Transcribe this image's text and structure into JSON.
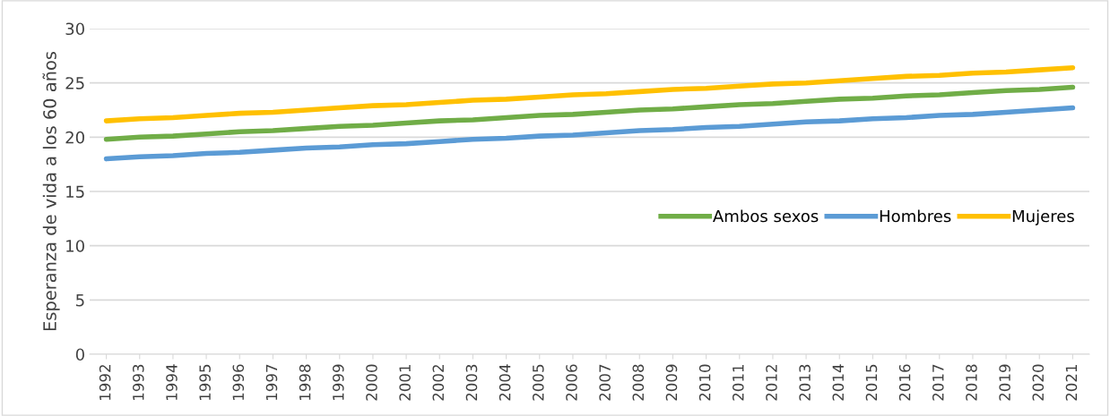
{
  "chart_data": {
    "type": "line",
    "ylabel": "Esperanza de vida a los 60 años",
    "categories": [
      "1992",
      "1993",
      "1994",
      "1995",
      "1996",
      "1997",
      "1998",
      "1999",
      "2000",
      "2001",
      "2002",
      "2003",
      "2004",
      "2005",
      "2006",
      "2007",
      "2008",
      "2009",
      "2010",
      "2011",
      "2012",
      "2013",
      "2014",
      "2015",
      "2016",
      "2017",
      "2018",
      "2019",
      "2020",
      "2021"
    ],
    "series": [
      {
        "name": "Ambos sexos",
        "color": "#70ad47",
        "values": [
          19.8,
          20.0,
          20.1,
          20.3,
          20.5,
          20.6,
          20.8,
          21.0,
          21.1,
          21.3,
          21.5,
          21.6,
          21.8,
          22.0,
          22.1,
          22.3,
          22.5,
          22.6,
          22.8,
          23.0,
          23.1,
          23.3,
          23.5,
          23.6,
          23.8,
          23.9,
          24.1,
          24.3,
          24.4,
          24.6
        ]
      },
      {
        "name": "Hombres",
        "color": "#5b9bd5",
        "values": [
          18.0,
          18.2,
          18.3,
          18.5,
          18.6,
          18.8,
          19.0,
          19.1,
          19.3,
          19.4,
          19.6,
          19.8,
          19.9,
          20.1,
          20.2,
          20.4,
          20.6,
          20.7,
          20.9,
          21.0,
          21.2,
          21.4,
          21.5,
          21.7,
          21.8,
          22.0,
          22.1,
          22.3,
          22.5,
          22.7
        ]
      },
      {
        "name": "Mujeres",
        "color": "#ffc000",
        "values": [
          21.5,
          21.7,
          21.8,
          22.0,
          22.2,
          22.3,
          22.5,
          22.7,
          22.9,
          23.0,
          23.2,
          23.4,
          23.5,
          23.7,
          23.9,
          24.0,
          24.2,
          24.4,
          24.5,
          24.7,
          24.9,
          25.0,
          25.2,
          25.4,
          25.6,
          25.7,
          25.9,
          26.0,
          26.2,
          26.4
        ]
      }
    ],
    "ylim": [
      0,
      30
    ],
    "yticks": [
      0,
      5,
      10,
      15,
      20,
      25,
      30
    ],
    "grid": "y",
    "legend": "right",
    "marker": "none",
    "line_style": "solid"
  }
}
